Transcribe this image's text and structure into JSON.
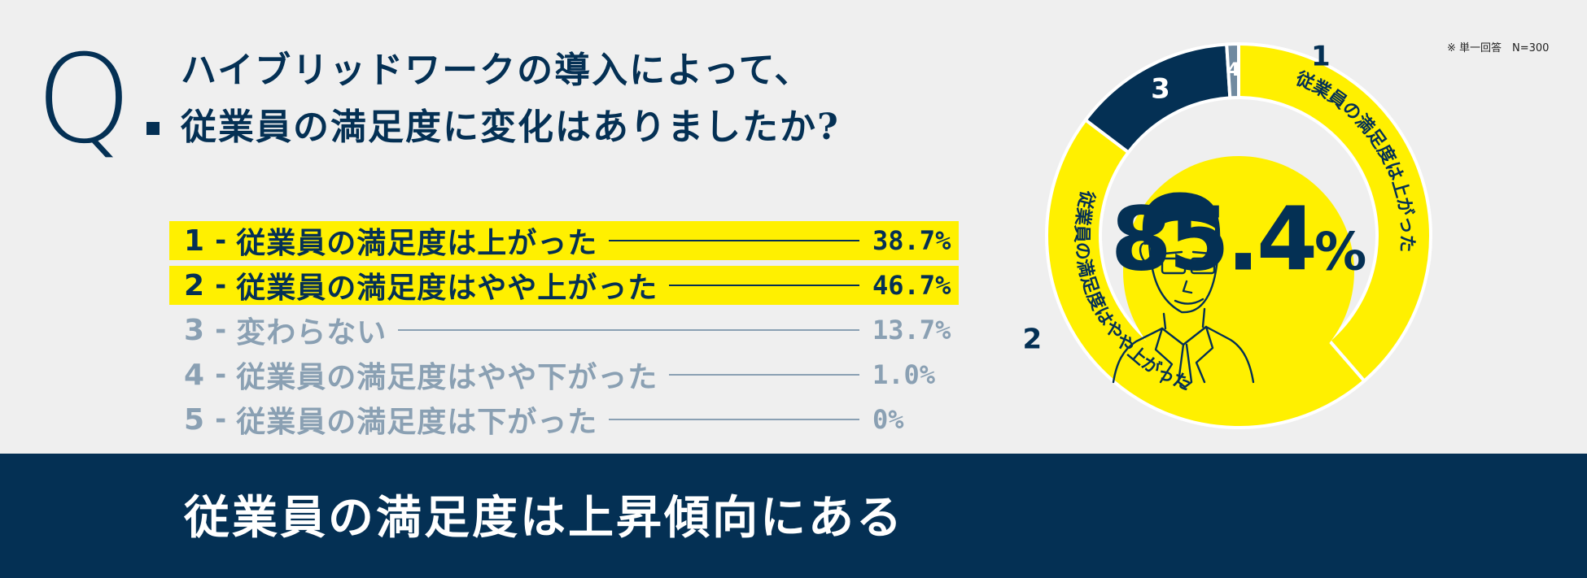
{
  "question": {
    "letter": "Q",
    "line1": "ハイブリッドワークの導入によって、",
    "line2": "従業員の満足度に変化はありましたか?"
  },
  "note": "※ 単一回答　N=300",
  "options": [
    {
      "num": "1",
      "label": "従業員の満足度は上がった",
      "pct": "38.7%",
      "highlight": true
    },
    {
      "num": "2",
      "label": "従業員の満足度はやや上がった",
      "pct": "46.7%",
      "highlight": true
    },
    {
      "num": "3",
      "label": "変わらない",
      "pct": "13.7%",
      "highlight": false
    },
    {
      "num": "4",
      "label": "従業員の満足度はやや下がった",
      "pct": "1.0%",
      "highlight": false
    },
    {
      "num": "5",
      "label": "従業員の満足度は下がった",
      "pct": "0%",
      "highlight": false
    }
  ],
  "conclusion": "従業員の満足度は上昇傾向にある",
  "chart_data": {
    "type": "pie",
    "style": "donut",
    "categories": [
      "1",
      "2",
      "3",
      "4",
      "5"
    ],
    "values": [
      38.7,
      46.7,
      13.7,
      1.0,
      0
    ],
    "segment_labels": {
      "1": "従業員の満足度は上がった",
      "2": "従業員の満足度はやや上がった"
    },
    "center_value": "85.4",
    "center_unit": "%",
    "colors": [
      "#fff000",
      "#fff000",
      "#043054",
      "#708aa0",
      "#cccccc"
    ]
  },
  "colors": {
    "navy": "#043054",
    "yellow": "#fff000",
    "gray": "#8aa0b3",
    "background": "#efefef"
  }
}
